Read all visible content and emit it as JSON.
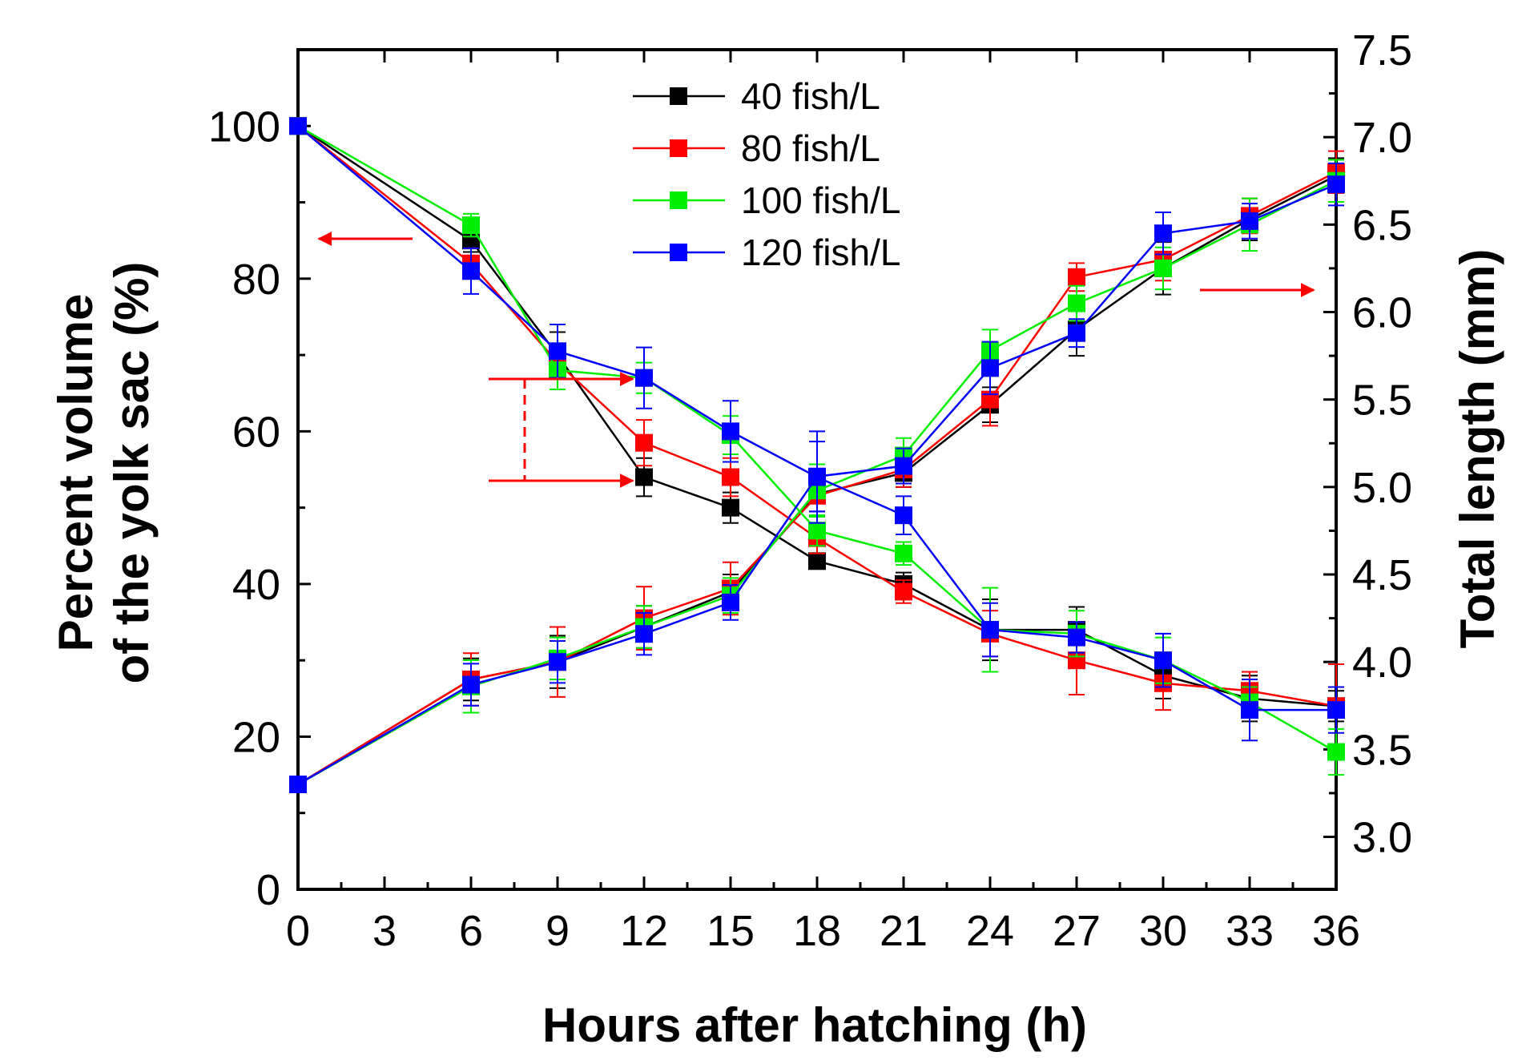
{
  "chart_data": {
    "type": "line",
    "x_label": "Hours after hatching (h)",
    "y_left_label_line1": "Percent volume",
    "y_left_label_line2": "of the yolk sac (%)",
    "y_right_label": "Total length (mm)",
    "x_ticks": [
      "0",
      "3",
      "6",
      "9",
      "12",
      "15",
      "18",
      "21",
      "24",
      "27",
      "30",
      "33",
      "36"
    ],
    "x_range": [
      0,
      36
    ],
    "y_left_ticks": [
      "0",
      "20",
      "40",
      "60",
      "80",
      "100"
    ],
    "y_left_range": [
      0,
      110
    ],
    "y_right_ticks": [
      "3.0",
      "3.5",
      "4.0",
      "4.5",
      "5.0",
      "5.5",
      "6.0",
      "6.5",
      "7.0",
      "7.5"
    ],
    "y_right_range": [
      2.7,
      7.5
    ],
    "x": [
      0,
      6,
      9,
      12,
      15,
      18,
      21,
      24,
      27,
      30,
      33,
      36
    ],
    "series": [
      {
        "name": "40 fish/L",
        "color": "#000000",
        "yolk": [
          100,
          85,
          70,
          54,
          50,
          43,
          40,
          34,
          34,
          28,
          25,
          24
        ],
        "yolk_err": [
          0,
          1.5,
          3,
          2.5,
          2,
          1,
          1.5,
          4,
          3,
          3,
          3,
          2
        ],
        "length": [
          3.3,
          3.9,
          4.0,
          4.2,
          4.4,
          4.96,
          5.08,
          5.47,
          5.9,
          6.25,
          6.53,
          6.78
        ],
        "length_err": [
          0,
          0.12,
          0.15,
          0.12,
          0.1,
          0.1,
          0.08,
          0.1,
          0.15,
          0.15,
          0.12,
          0.1
        ]
      },
      {
        "name": "80 fish/L",
        "color": "#ff0000",
        "yolk": [
          100,
          82,
          69,
          58.5,
          54,
          46,
          39,
          33.5,
          30,
          27,
          26,
          24
        ],
        "yolk_err": [
          0,
          2,
          2,
          3,
          2.5,
          2,
          1.5,
          3,
          4.5,
          3.5,
          2.5,
          5.5
        ],
        "length": [
          3.3,
          3.9,
          4.0,
          4.25,
          4.42,
          4.95,
          5.1,
          5.5,
          6.2,
          6.3,
          6.55,
          6.8
        ],
        "length_err": [
          0,
          0.15,
          0.2,
          0.18,
          0.15,
          0.12,
          0.1,
          0.15,
          0.08,
          0.12,
          0.1,
          0.12
        ]
      },
      {
        "name": "100 fish/L",
        "color": "#00ee00",
        "yolk": [
          100,
          87,
          68,
          67,
          59.5,
          47,
          44,
          34,
          33.5,
          30,
          24.5,
          18
        ],
        "yolk_err": [
          0,
          1.5,
          2.5,
          2,
          2.5,
          2,
          1.5,
          5.5,
          3,
          3,
          2,
          3
        ],
        "length": [
          3.3,
          3.86,
          4.02,
          4.2,
          4.38,
          4.98,
          5.18,
          5.78,
          6.05,
          6.25,
          6.5,
          6.75
        ],
        "length_err": [
          0,
          0.15,
          0.12,
          0.12,
          0.1,
          0.15,
          0.1,
          0.12,
          0.1,
          0.12,
          0.15,
          0.12
        ]
      },
      {
        "name": "120 fish/L",
        "color": "#0000ff",
        "yolk": [
          100,
          81,
          70.5,
          67,
          60,
          54,
          49,
          34,
          33,
          30,
          23.5,
          23.5
        ],
        "yolk_err": [
          0,
          3,
          3.5,
          4,
          4,
          6,
          2.5,
          3.5,
          2,
          3.5,
          4,
          3
        ],
        "length": [
          3.3,
          3.87,
          4.0,
          4.16,
          4.34,
          5.06,
          5.12,
          5.68,
          5.88,
          6.45,
          6.52,
          6.73
        ],
        "length_err": [
          0,
          0.12,
          0.12,
          0.12,
          0.1,
          0.2,
          0.1,
          0.15,
          0.08,
          0.12,
          0.1,
          0.12
        ]
      }
    ],
    "annotations": [
      "left arrow pointing to left axis (yolk sac volume)",
      "right arrow pointing to right axis (total length)",
      "dashed bracket between 40 fish/L and 120 fish/L at 12 h"
    ]
  }
}
